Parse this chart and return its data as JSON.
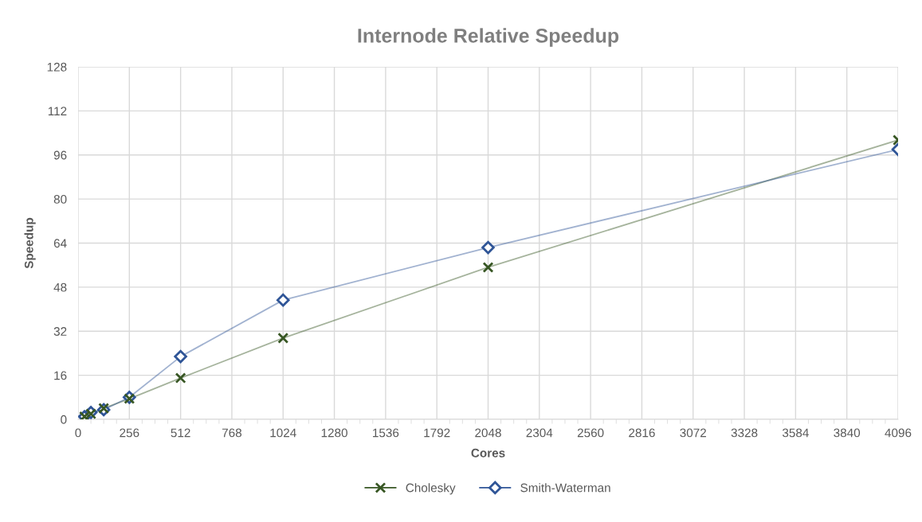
{
  "chart_data": {
    "type": "line",
    "title": "Internode Relative Speedup",
    "xlabel": "Cores",
    "ylabel": "Speedup",
    "x": [
      32,
      64,
      128,
      256,
      512,
      1024,
      2048,
      4096
    ],
    "series": [
      {
        "name": "Cholesky",
        "color": "#375623",
        "marker": "cross",
        "values": [
          1,
          2,
          4,
          7.5,
          15,
          29.5,
          55.2,
          101.4
        ]
      },
      {
        "name": "Smith-Waterman",
        "color": "#2f5597",
        "marker": "diamond",
        "values": [
          1,
          2.5,
          3.5,
          8,
          22.8,
          43.3,
          62.4,
          98
        ]
      }
    ],
    "xlim": [
      0,
      4096
    ],
    "xticks": [
      0,
      256,
      512,
      768,
      1024,
      1280,
      1536,
      1792,
      2048,
      2304,
      2560,
      2816,
      3072,
      3328,
      3584,
      3840,
      4096
    ],
    "ylim": [
      0,
      128
    ],
    "yticks": [
      0,
      16,
      32,
      48,
      64,
      80,
      96,
      112,
      128
    ],
    "grid": true,
    "legend": "bottom",
    "line_style": "solid"
  }
}
